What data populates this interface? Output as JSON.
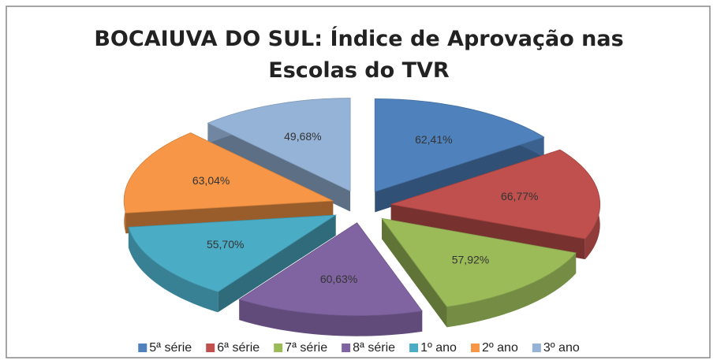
{
  "chart_data": {
    "type": "pie",
    "title": "BOCAIUVA DO SUL: Índice de Aprovação nas Escolas do TVR",
    "categories": [
      "5ª série",
      "6ª série",
      "7ª série",
      "8ª série",
      "1º ano",
      "2º ano",
      "3º ano"
    ],
    "values": [
      62.41,
      66.77,
      57.92,
      60.63,
      55.7,
      63.04,
      49.68
    ],
    "value_labels": [
      "62,41%",
      "66,77%",
      "57,92%",
      "60,63%",
      "55,70%",
      "63,04%",
      "49,68%"
    ],
    "colors": [
      "#4f81bd",
      "#c0504d",
      "#9bbb59",
      "#8064a2",
      "#4bacc6",
      "#f79646",
      "#95b3d7"
    ],
    "legend": "bottom"
  }
}
